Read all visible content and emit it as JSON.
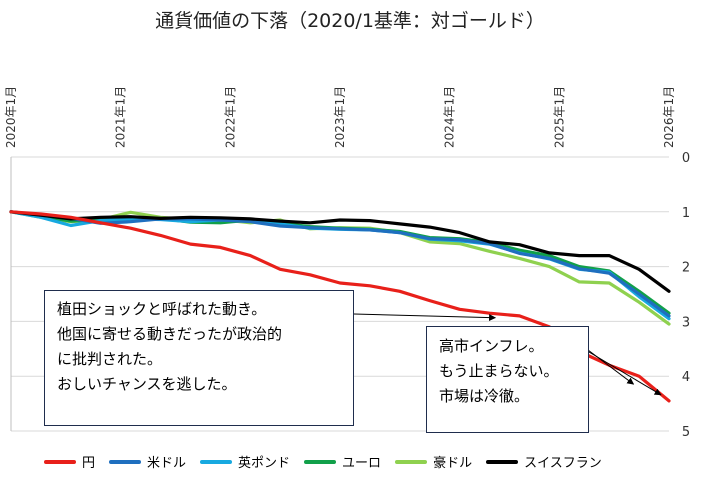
{
  "chart_data": {
    "type": "line",
    "title": "通貨価値の下落（2020/1基準：対ゴールド）",
    "x_ticks": [
      "2020年1月",
      "2021年1月",
      "2022年1月",
      "2023年1月",
      "2024年1月",
      "2025年1月",
      "2026年1月"
    ],
    "x_range": [
      "2020-01",
      "2026-01"
    ],
    "y_ticks": [
      0,
      1,
      2,
      3,
      4,
      5
    ],
    "ylim": [
      0,
      5
    ],
    "y_inverted": true,
    "grid": "horizontal",
    "legend_position": "bottom",
    "series": [
      {
        "name": "円",
        "color": "#e8201a",
        "values": [
          1.0,
          1.04,
          1.1,
          1.2,
          1.3,
          1.43,
          1.59,
          1.65,
          1.8,
          2.05,
          2.15,
          2.3,
          2.35,
          2.45,
          2.62,
          2.78,
          2.85,
          2.9,
          3.1,
          3.55,
          3.8,
          4.0,
          4.45
        ]
      },
      {
        "name": "米ドル",
        "color": "#1f6fbf",
        "values": [
          1.0,
          1.06,
          1.12,
          1.21,
          1.18,
          1.13,
          1.13,
          1.15,
          1.18,
          1.26,
          1.29,
          1.31,
          1.33,
          1.38,
          1.49,
          1.51,
          1.58,
          1.76,
          1.85,
          2.04,
          2.12,
          2.5,
          2.9
        ]
      },
      {
        "name": "英ポンド",
        "color": "#17a9e0",
        "values": [
          1.0,
          1.1,
          1.25,
          1.16,
          1.13,
          1.14,
          1.18,
          1.15,
          1.16,
          1.22,
          1.3,
          1.32,
          1.33,
          1.38,
          1.5,
          1.53,
          1.59,
          1.75,
          1.86,
          2.05,
          2.1,
          2.55,
          2.95
        ]
      },
      {
        "name": "ユーロ",
        "color": "#11a04a",
        "values": [
          1.0,
          1.08,
          1.17,
          1.14,
          1.11,
          1.12,
          1.19,
          1.2,
          1.15,
          1.21,
          1.27,
          1.3,
          1.32,
          1.36,
          1.47,
          1.49,
          1.56,
          1.7,
          1.8,
          2.0,
          2.08,
          2.45,
          2.85
        ]
      },
      {
        "name": "豪ドル",
        "color": "#8fd14f",
        "values": [
          1.0,
          1.1,
          1.18,
          1.14,
          1.01,
          1.1,
          1.14,
          1.14,
          1.2,
          1.15,
          1.31,
          1.29,
          1.3,
          1.38,
          1.55,
          1.58,
          1.72,
          1.85,
          2.0,
          2.28,
          2.3,
          2.65,
          3.05
        ]
      },
      {
        "name": "スイスフラン",
        "color": "#000000",
        "values": [
          1.0,
          1.06,
          1.13,
          1.1,
          1.09,
          1.12,
          1.1,
          1.11,
          1.13,
          1.17,
          1.2,
          1.15,
          1.16,
          1.22,
          1.28,
          1.38,
          1.55,
          1.6,
          1.75,
          1.8,
          1.8,
          2.05,
          2.45
        ]
      }
    ],
    "annotations": [
      {
        "lines": [
          "植田ショックと呼ばれた動き。",
          "他国に寄せる動きだったが政治的",
          "に批判された。",
          "おしいチャンスを逃した。"
        ],
        "points_to": {
          "series": "円",
          "x": "2024-06"
        }
      },
      {
        "lines": [
          "高市インフレ。",
          "もう止まらない。",
          "市場は冷徹。"
        ],
        "points_to": [
          {
            "series": "円",
            "x": "2025-10"
          },
          {
            "series": "円",
            "x": "2026-01"
          }
        ]
      }
    ]
  }
}
